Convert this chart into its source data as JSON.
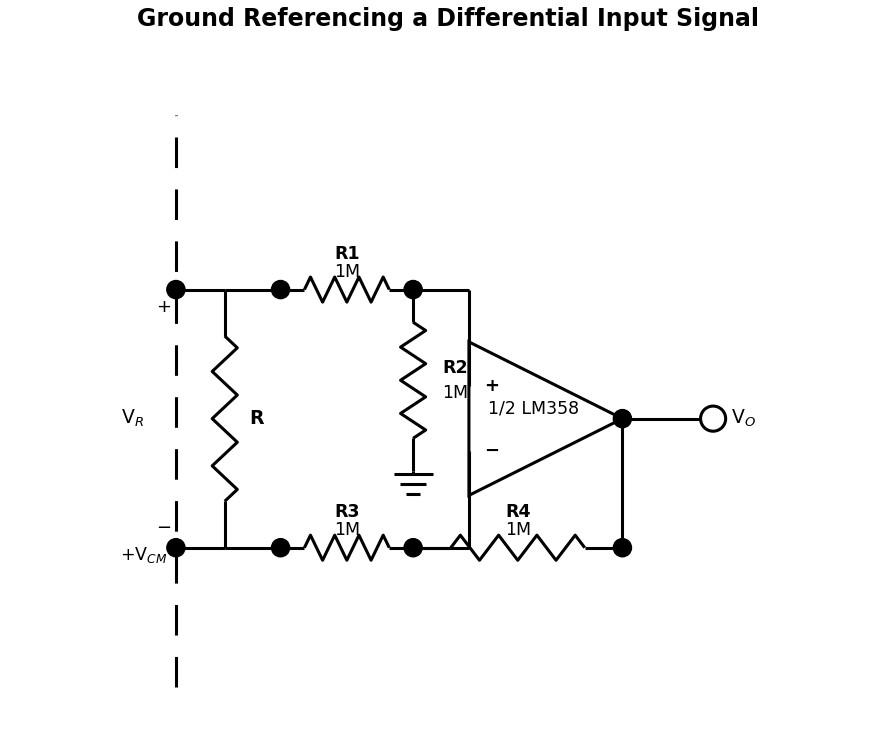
{
  "title": "Ground Referencing a Differential Input Signal",
  "title_fontsize": 17,
  "bg_color": "#ffffff",
  "line_color": "black",
  "line_width": 2.2,
  "fig_width": 8.96,
  "fig_height": 7.5,
  "dpi": 100,
  "xlim": [
    0,
    11
  ],
  "ylim": [
    0,
    10
  ]
}
